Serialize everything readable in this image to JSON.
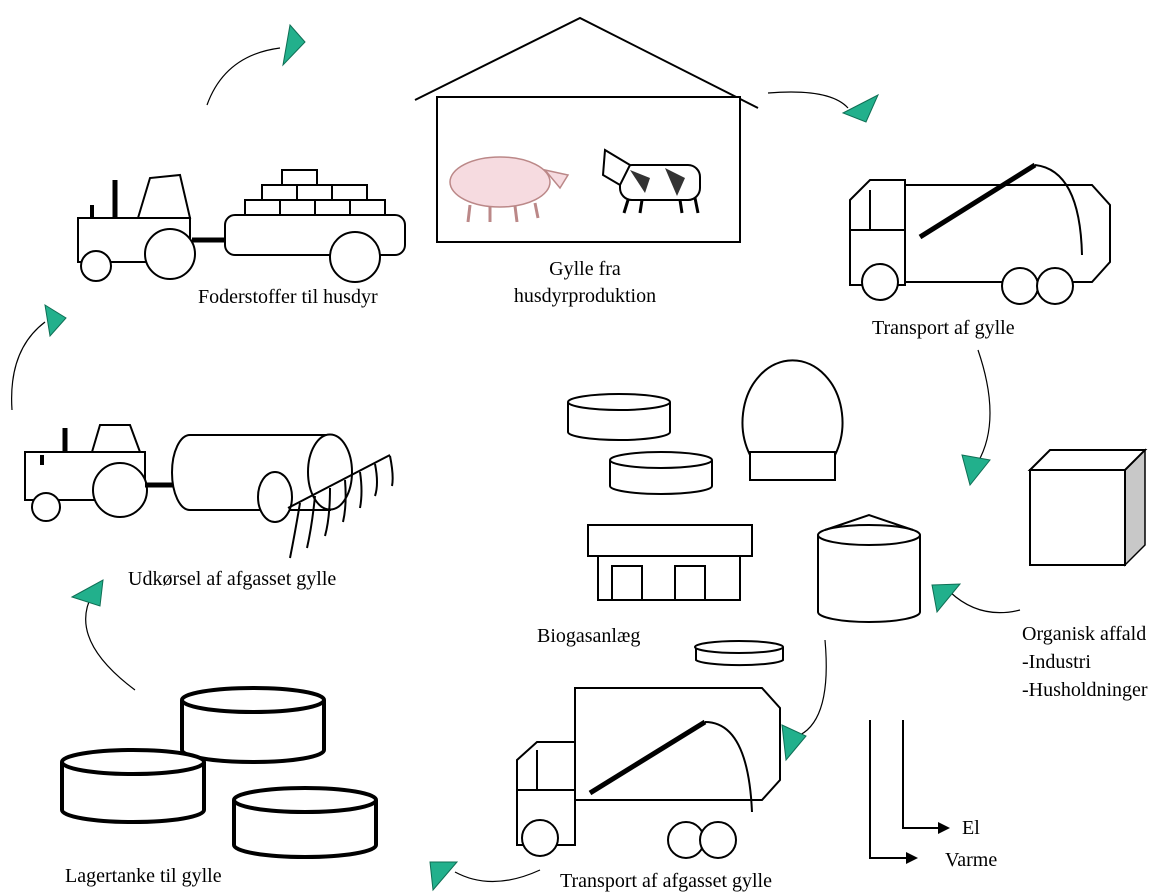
{
  "nodes": [
    {
      "label": [
        "Foderstoffer til husdyr"
      ]
    },
    {
      "label": [
        "Gylle fra",
        "husdyrproduktion"
      ]
    },
    {
      "label": [
        "Transport af gylle"
      ]
    },
    {
      "label": [
        "Biogasanlæg"
      ]
    },
    {
      "label": [
        "Organisk affald",
        "-Industri",
        "-Husholdninger"
      ]
    },
    {
      "label": [
        "Udkørsel af afgasset gylle"
      ]
    },
    {
      "label": [
        "Lagertanke til gylle"
      ]
    },
    {
      "label": [
        "Transport af afgasset gylle"
      ]
    }
  ],
  "outputs": [
    "El",
    "Varme"
  ]
}
